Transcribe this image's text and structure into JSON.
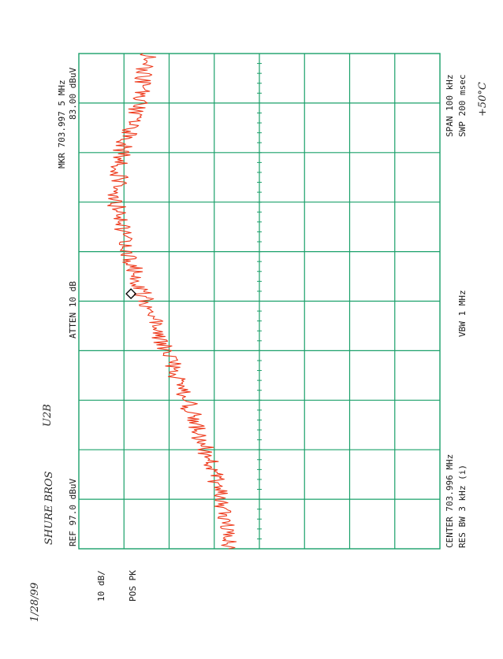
{
  "header": {
    "marker_freq": "MKR 703.997 5 MHz",
    "marker_level": "83.00 dBuV",
    "span": "SPAN 100 kHz",
    "sweep": "SWP 200 msec",
    "attenuation": "ATTEN 10 dB",
    "vbw": "VBW 1 MHz",
    "center": "CENTER 703.996 MHz",
    "res_bw": "RES BW 3 kHz (i)",
    "ref_level": "REF   97.0 dBuV",
    "scale": "10 dB/",
    "detector": "POS PK"
  },
  "handwriting": {
    "temperature": "+50°C",
    "maker": "SHURE BROS",
    "model": "U2B",
    "date": "1/28/99"
  },
  "colors": {
    "grid": "#1aa06a",
    "trace": "#ee3a1c",
    "text": "#1a1a1a",
    "marker": "#000000"
  },
  "chart_data": {
    "type": "line",
    "title": "",
    "xlabel": "",
    "ylabel": "",
    "xlim": [
      703.946,
      704.046
    ],
    "ylim": [
      0,
      97
    ],
    "x_unit": "MHz",
    "y_unit": "dBuV",
    "grid": true,
    "divisions": {
      "x": 10,
      "y": 8
    },
    "series": [
      {
        "x": [
          703.946,
          703.956,
          703.966,
          703.976,
          703.986,
          703.996,
          704.006,
          704.016,
          704.026,
          704.036,
          704.046
        ],
        "values": [
          56.0,
          58.5,
          63.0,
          68.0,
          73.5,
          79.0,
          84.0,
          87.0,
          85.5,
          81.0,
          78.5
        ]
      }
    ],
    "marker": {
      "x": 703.9975,
      "y": 83.0
    }
  }
}
